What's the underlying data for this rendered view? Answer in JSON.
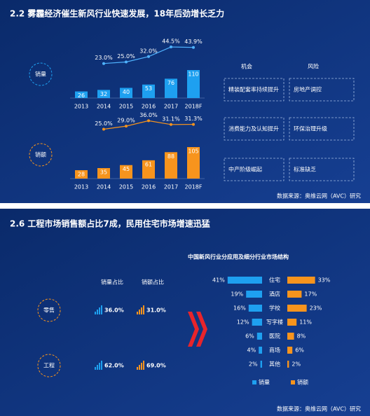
{
  "slides": [
    {
      "title": "2.2 雾霾经济催生新风行业快速发展，18年后劲增长乏力",
      "headers": [
        "机会",
        "风险"
      ],
      "boxes": [
        [
          "精装配套率持续提升",
          "房地产调控"
        ],
        [
          "消费能力及认知提升",
          "环保治理升级"
        ],
        [
          "中产阶级崛起",
          "标准缺乏"
        ]
      ],
      "source": "数据来源：奥维云网（AVC）研究"
    },
    {
      "title": "2.6 工程市场销售额占比7成，民用住宅市场增速迅猛",
      "stats": {
        "headers": [
          "销量占比",
          "销额占比"
        ],
        "rows": [
          {
            "label": "零售",
            "values": [
              "36.0%",
              "31.0%"
            ]
          },
          {
            "label": "工程",
            "values": [
              "62.0%",
              "69.0%"
            ]
          }
        ]
      },
      "source": "数据来源：奥维云网（AVC）研究"
    }
  ],
  "chart_data": [
    {
      "type": "bar",
      "label": "销量",
      "categories": [
        "2013",
        "2014",
        "2015",
        "2016",
        "2017",
        "2018F"
      ],
      "values": [
        26,
        32,
        40,
        53,
        76,
        110
      ],
      "color": "#1ea0f0",
      "growth": {
        "values": [
          null,
          23.0,
          25.0,
          32.0,
          44.5,
          43.9
        ],
        "value_labels": [
          null,
          "23.0%",
          "25.0%",
          "32.0%",
          "44.5%",
          "43.9%"
        ],
        "color": "#4fb3ff"
      }
    },
    {
      "type": "bar",
      "label": "销额",
      "categories": [
        "2013",
        "2014",
        "2015",
        "2016",
        "2017",
        "2018F"
      ],
      "values": [
        28,
        35,
        45,
        61,
        88,
        105
      ],
      "color": "#f7941d",
      "growth": {
        "values": [
          null,
          25.0,
          29.0,
          36.0,
          31.1,
          31.3
        ],
        "value_labels": [
          null,
          "25.0%",
          "29.0%",
          "36.0%",
          "31.1%",
          "31.3%"
        ],
        "color": "#f7941d"
      }
    },
    {
      "type": "butterfly",
      "title": "中国新风行业分应用及细分行业市场结构",
      "categories": [
        "住宅",
        "酒店",
        "学校",
        "写字楼",
        "医院",
        "商场",
        "其他"
      ],
      "series": [
        {
          "name": "销量",
          "color": "#1ea0f0",
          "values": [
            41,
            19,
            16,
            12,
            6,
            4,
            2
          ],
          "value_labels": [
            "41%",
            "19%",
            "16%",
            "12%",
            "6%",
            "4%",
            "2%"
          ]
        },
        {
          "name": "销额",
          "color": "#f7941d",
          "values": [
            33,
            17,
            23,
            11,
            8,
            6,
            2
          ],
          "value_labels": [
            "33%",
            "17%",
            "23%",
            "11%",
            "8%",
            "6%",
            "2%"
          ]
        }
      ]
    }
  ]
}
